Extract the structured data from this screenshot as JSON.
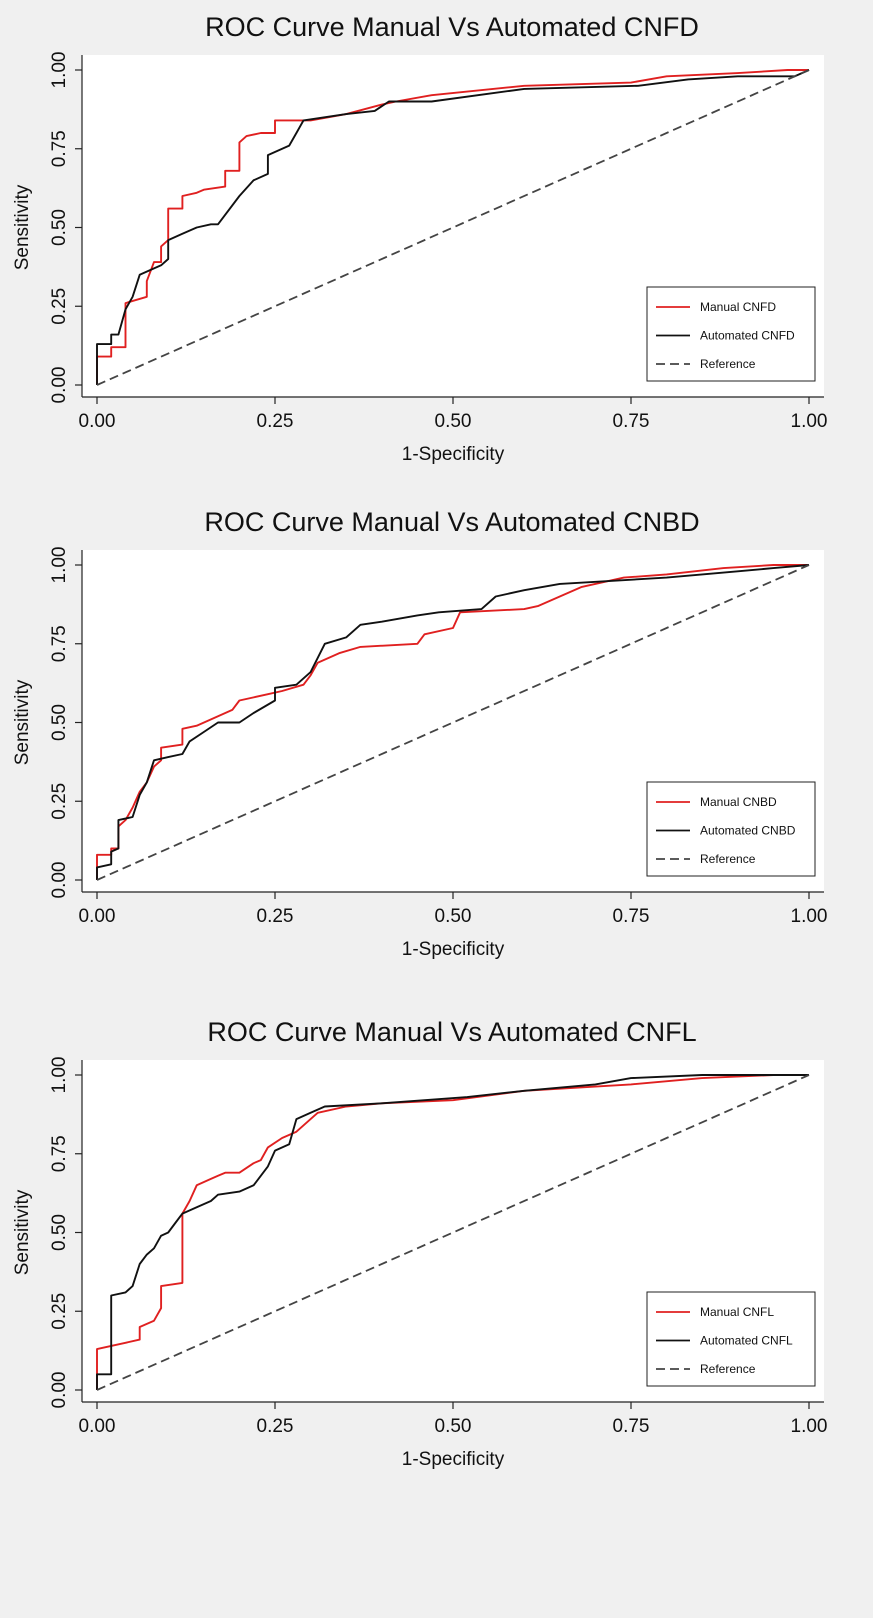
{
  "colors": {
    "manual": "#e02020",
    "automated": "#111111",
    "reference": "#444444",
    "plot_bg": "#ffffff",
    "page_bg": "#f0f0f0"
  },
  "chart_data": [
    {
      "type": "line",
      "title": "ROC Curve Manual Vs Automated CNFD",
      "xlabel": "1-Specificity",
      "ylabel": "Sensitivity",
      "xlim": [
        0,
        1
      ],
      "ylim": [
        0,
        1
      ],
      "xticks": [
        "0.00",
        "0.25",
        "0.50",
        "0.75",
        "1.00"
      ],
      "yticks": [
        "0.00",
        "0.25",
        "0.50",
        "0.75",
        "1.00"
      ],
      "grid": false,
      "legend": "bottom-right",
      "series": [
        {
          "name": "Manual CNFD",
          "color": "#e02020",
          "points": [
            [
              0,
              0
            ],
            [
              0,
              0.09
            ],
            [
              0.02,
              0.09
            ],
            [
              0.02,
              0.12
            ],
            [
              0.04,
              0.12
            ],
            [
              0.04,
              0.26
            ],
            [
              0.07,
              0.28
            ],
            [
              0.07,
              0.33
            ],
            [
              0.08,
              0.39
            ],
            [
              0.09,
              0.39
            ],
            [
              0.09,
              0.44
            ],
            [
              0.1,
              0.46
            ],
            [
              0.1,
              0.56
            ],
            [
              0.12,
              0.56
            ],
            [
              0.12,
              0.6
            ],
            [
              0.14,
              0.61
            ],
            [
              0.15,
              0.62
            ],
            [
              0.18,
              0.63
            ],
            [
              0.18,
              0.68
            ],
            [
              0.2,
              0.68
            ],
            [
              0.2,
              0.77
            ],
            [
              0.21,
              0.79
            ],
            [
              0.23,
              0.8
            ],
            [
              0.25,
              0.8
            ],
            [
              0.25,
              0.84
            ],
            [
              0.3,
              0.84
            ],
            [
              0.35,
              0.86
            ],
            [
              0.4,
              0.89
            ],
            [
              0.42,
              0.9
            ],
            [
              0.47,
              0.92
            ],
            [
              0.6,
              0.95
            ],
            [
              0.75,
              0.96
            ],
            [
              0.8,
              0.98
            ],
            [
              0.9,
              0.99
            ],
            [
              0.97,
              1.0
            ],
            [
              1,
              1
            ]
          ]
        },
        {
          "name": "Automated CNFD",
          "color": "#111111",
          "points": [
            [
              0,
              0
            ],
            [
              0,
              0.13
            ],
            [
              0.02,
              0.13
            ],
            [
              0.02,
              0.16
            ],
            [
              0.03,
              0.16
            ],
            [
              0.04,
              0.24
            ],
            [
              0.05,
              0.28
            ],
            [
              0.06,
              0.35
            ],
            [
              0.08,
              0.37
            ],
            [
              0.09,
              0.38
            ],
            [
              0.1,
              0.4
            ],
            [
              0.1,
              0.46
            ],
            [
              0.12,
              0.48
            ],
            [
              0.14,
              0.5
            ],
            [
              0.16,
              0.51
            ],
            [
              0.17,
              0.51
            ],
            [
              0.2,
              0.6
            ],
            [
              0.22,
              0.65
            ],
            [
              0.24,
              0.67
            ],
            [
              0.24,
              0.73
            ],
            [
              0.27,
              0.76
            ],
            [
              0.28,
              0.8
            ],
            [
              0.29,
              0.84
            ],
            [
              0.35,
              0.86
            ],
            [
              0.39,
              0.87
            ],
            [
              0.41,
              0.9
            ],
            [
              0.47,
              0.9
            ],
            [
              0.6,
              0.94
            ],
            [
              0.76,
              0.95
            ],
            [
              0.83,
              0.97
            ],
            [
              0.9,
              0.98
            ],
            [
              0.98,
              0.98
            ],
            [
              1,
              1
            ]
          ]
        },
        {
          "name": "Reference",
          "color": "#444444",
          "dashed": true,
          "points": [
            [
              0,
              0
            ],
            [
              1,
              1
            ]
          ]
        }
      ]
    },
    {
      "type": "line",
      "title": "ROC Curve Manual Vs Automated CNBD",
      "xlabel": "1-Specificity",
      "ylabel": "Sensitivity",
      "xlim": [
        0,
        1
      ],
      "ylim": [
        0,
        1
      ],
      "xticks": [
        "0.00",
        "0.25",
        "0.50",
        "0.75",
        "1.00"
      ],
      "yticks": [
        "0.00",
        "0.25",
        "0.50",
        "0.75",
        "1.00"
      ],
      "grid": false,
      "legend": "bottom-right",
      "series": [
        {
          "name": "Manual CNBD",
          "color": "#e02020",
          "points": [
            [
              0,
              0
            ],
            [
              0,
              0.08
            ],
            [
              0.02,
              0.08
            ],
            [
              0.02,
              0.1
            ],
            [
              0.03,
              0.1
            ],
            [
              0.03,
              0.17
            ],
            [
              0.04,
              0.19
            ],
            [
              0.05,
              0.23
            ],
            [
              0.06,
              0.28
            ],
            [
              0.07,
              0.31
            ],
            [
              0.08,
              0.36
            ],
            [
              0.09,
              0.38
            ],
            [
              0.09,
              0.42
            ],
            [
              0.12,
              0.43
            ],
            [
              0.12,
              0.48
            ],
            [
              0.14,
              0.49
            ],
            [
              0.17,
              0.52
            ],
            [
              0.19,
              0.54
            ],
            [
              0.2,
              0.57
            ],
            [
              0.24,
              0.59
            ],
            [
              0.26,
              0.6
            ],
            [
              0.29,
              0.62
            ],
            [
              0.3,
              0.65
            ],
            [
              0.31,
              0.69
            ],
            [
              0.34,
              0.72
            ],
            [
              0.37,
              0.74
            ],
            [
              0.45,
              0.75
            ],
            [
              0.46,
              0.78
            ],
            [
              0.5,
              0.8
            ],
            [
              0.51,
              0.85
            ],
            [
              0.6,
              0.86
            ],
            [
              0.62,
              0.87
            ],
            [
              0.65,
              0.9
            ],
            [
              0.68,
              0.93
            ],
            [
              0.74,
              0.96
            ],
            [
              0.8,
              0.97
            ],
            [
              0.88,
              0.99
            ],
            [
              0.95,
              1.0
            ],
            [
              1,
              1
            ]
          ]
        },
        {
          "name": "Automated CNBD",
          "color": "#111111",
          "points": [
            [
              0,
              0
            ],
            [
              0,
              0.04
            ],
            [
              0.02,
              0.05
            ],
            [
              0.02,
              0.09
            ],
            [
              0.03,
              0.1
            ],
            [
              0.03,
              0.19
            ],
            [
              0.05,
              0.2
            ],
            [
              0.06,
              0.27
            ],
            [
              0.07,
              0.31
            ],
            [
              0.08,
              0.38
            ],
            [
              0.1,
              0.39
            ],
            [
              0.12,
              0.4
            ],
            [
              0.13,
              0.44
            ],
            [
              0.15,
              0.47
            ],
            [
              0.17,
              0.5
            ],
            [
              0.2,
              0.5
            ],
            [
              0.22,
              0.53
            ],
            [
              0.25,
              0.57
            ],
            [
              0.25,
              0.61
            ],
            [
              0.28,
              0.62
            ],
            [
              0.3,
              0.66
            ],
            [
              0.32,
              0.75
            ],
            [
              0.35,
              0.77
            ],
            [
              0.37,
              0.81
            ],
            [
              0.4,
              0.82
            ],
            [
              0.45,
              0.84
            ],
            [
              0.48,
              0.85
            ],
            [
              0.54,
              0.86
            ],
            [
              0.56,
              0.9
            ],
            [
              0.6,
              0.92
            ],
            [
              0.65,
              0.94
            ],
            [
              0.8,
              0.96
            ],
            [
              0.85,
              0.97
            ],
            [
              0.9,
              0.98
            ],
            [
              0.95,
              0.99
            ],
            [
              1,
              1
            ]
          ]
        },
        {
          "name": "Reference",
          "color": "#444444",
          "dashed": true,
          "points": [
            [
              0,
              0
            ],
            [
              1,
              1
            ]
          ]
        }
      ]
    },
    {
      "type": "line",
      "title": "ROC Curve Manual Vs Automated CNFL",
      "xlabel": "1-Specificity",
      "ylabel": "Sensitivity",
      "xlim": [
        0,
        1
      ],
      "ylim": [
        0,
        1
      ],
      "xticks": [
        "0.00",
        "0.25",
        "0.50",
        "0.75",
        "1.00"
      ],
      "yticks": [
        "0.00",
        "0.25",
        "0.50",
        "0.75",
        "1.00"
      ],
      "grid": false,
      "legend": "bottom-right",
      "series": [
        {
          "name": "Manual CNFL",
          "color": "#e02020",
          "points": [
            [
              0,
              0
            ],
            [
              0,
              0.13
            ],
            [
              0.02,
              0.14
            ],
            [
              0.04,
              0.15
            ],
            [
              0.06,
              0.16
            ],
            [
              0.06,
              0.2
            ],
            [
              0.08,
              0.22
            ],
            [
              0.09,
              0.26
            ],
            [
              0.09,
              0.33
            ],
            [
              0.12,
              0.34
            ],
            [
              0.12,
              0.56
            ],
            [
              0.13,
              0.6
            ],
            [
              0.14,
              0.65
            ],
            [
              0.16,
              0.67
            ],
            [
              0.17,
              0.68
            ],
            [
              0.18,
              0.69
            ],
            [
              0.2,
              0.69
            ],
            [
              0.22,
              0.72
            ],
            [
              0.23,
              0.73
            ],
            [
              0.24,
              0.77
            ],
            [
              0.26,
              0.8
            ],
            [
              0.28,
              0.82
            ],
            [
              0.3,
              0.86
            ],
            [
              0.31,
              0.88
            ],
            [
              0.35,
              0.9
            ],
            [
              0.4,
              0.91
            ],
            [
              0.5,
              0.92
            ],
            [
              0.6,
              0.95
            ],
            [
              0.75,
              0.97
            ],
            [
              0.85,
              0.99
            ],
            [
              0.95,
              1.0
            ],
            [
              1,
              1
            ]
          ]
        },
        {
          "name": "Automated CNFL",
          "color": "#111111",
          "points": [
            [
              0,
              0
            ],
            [
              0,
              0.05
            ],
            [
              0.02,
              0.05
            ],
            [
              0.02,
              0.3
            ],
            [
              0.04,
              0.31
            ],
            [
              0.05,
              0.33
            ],
            [
              0.06,
              0.4
            ],
            [
              0.07,
              0.43
            ],
            [
              0.08,
              0.45
            ],
            [
              0.09,
              0.49
            ],
            [
              0.1,
              0.5
            ],
            [
              0.11,
              0.53
            ],
            [
              0.12,
              0.56
            ],
            [
              0.14,
              0.58
            ],
            [
              0.16,
              0.6
            ],
            [
              0.17,
              0.62
            ],
            [
              0.2,
              0.63
            ],
            [
              0.22,
              0.65
            ],
            [
              0.23,
              0.68
            ],
            [
              0.24,
              0.71
            ],
            [
              0.25,
              0.76
            ],
            [
              0.27,
              0.78
            ],
            [
              0.28,
              0.86
            ],
            [
              0.3,
              0.88
            ],
            [
              0.32,
              0.9
            ],
            [
              0.4,
              0.91
            ],
            [
              0.52,
              0.93
            ],
            [
              0.6,
              0.95
            ],
            [
              0.7,
              0.97
            ],
            [
              0.75,
              0.99
            ],
            [
              0.85,
              1.0
            ],
            [
              1,
              1
            ]
          ]
        },
        {
          "name": "Reference",
          "color": "#444444",
          "dashed": true,
          "points": [
            [
              0,
              0
            ],
            [
              1,
              1
            ]
          ]
        }
      ]
    }
  ]
}
